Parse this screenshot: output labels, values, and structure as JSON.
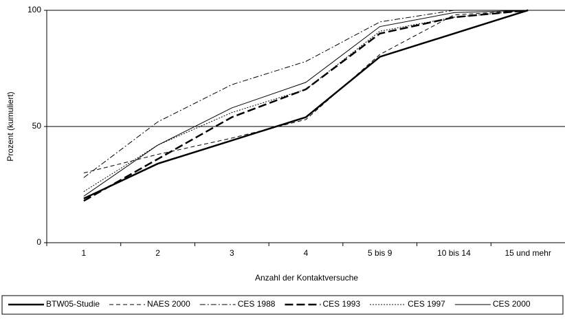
{
  "chart_data": {
    "type": "line",
    "y_label": "Prozent (kumuliert)",
    "x_label": "Anzahl der Kontaktversuche",
    "categories": [
      "1",
      "2",
      "3",
      "4",
      "5 bis 9",
      "10 bis 14",
      "15 und mehr"
    ],
    "ylim": [
      0,
      100
    ],
    "yticks": [
      0,
      50,
      100
    ],
    "grid": true,
    "legend": "bottom",
    "series": [
      {
        "name": "BTW05-Studie",
        "color": "#000000",
        "width": 2.5,
        "style": "solid",
        "values": [
          19,
          34,
          44,
          54,
          80,
          90,
          100
        ]
      },
      {
        "name": "NAES 2000",
        "color": "#000000",
        "width": 1,
        "style": "dashed",
        "values": [
          30,
          38,
          45,
          53,
          81,
          98,
          100
        ]
      },
      {
        "name": "CES 1988",
        "color": "#000000",
        "width": 1,
        "style": "dashdot",
        "values": [
          28,
          52,
          68,
          78,
          95,
          100,
          100
        ]
      },
      {
        "name": "CES 1993",
        "color": "#000000",
        "width": 2.5,
        "style": "longdash",
        "values": [
          18,
          36,
          54,
          66,
          90,
          97,
          100
        ]
      },
      {
        "name": "CES 1997",
        "color": "#000000",
        "width": 1,
        "style": "dotted",
        "values": [
          22,
          42,
          56,
          66,
          91,
          97,
          100
        ]
      },
      {
        "name": "CES 2000",
        "color": "#000000",
        "width": 1,
        "style": "solid",
        "values": [
          20,
          42,
          58,
          69,
          93,
          99,
          100
        ]
      }
    ]
  }
}
